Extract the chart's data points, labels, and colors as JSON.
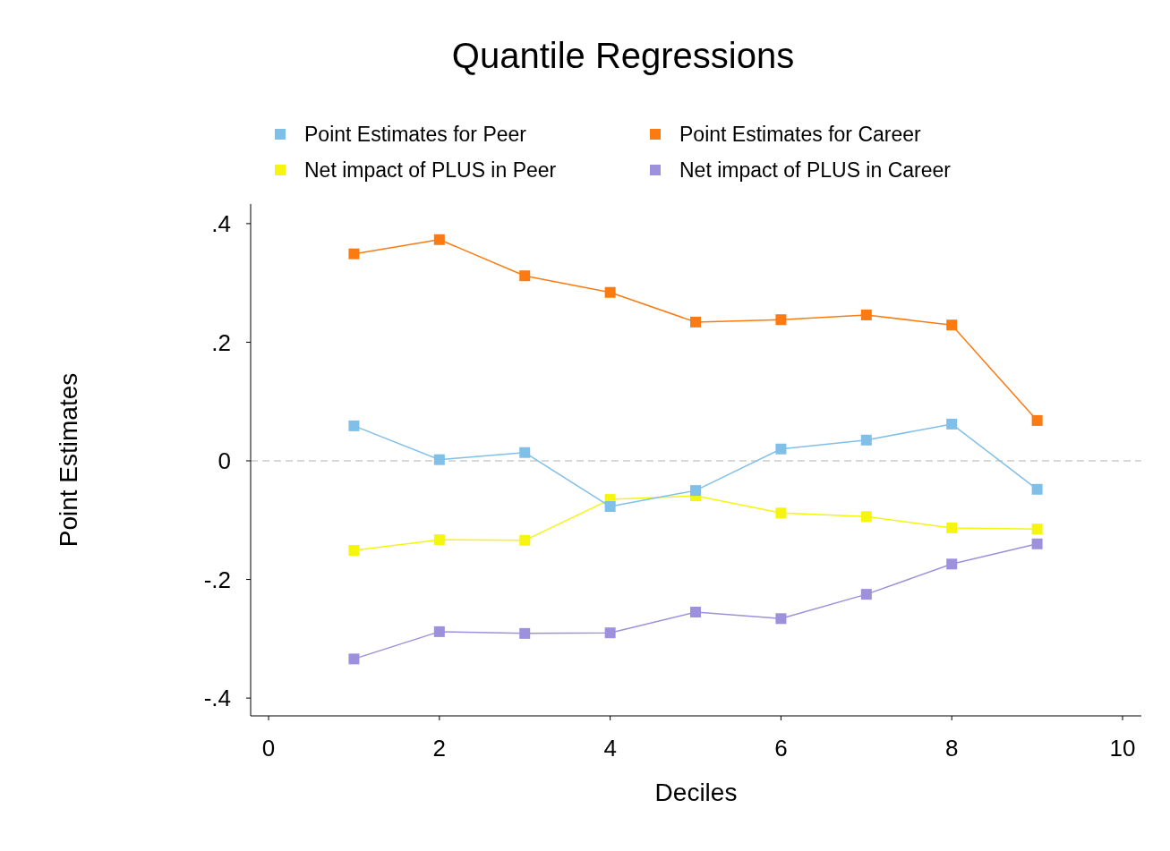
{
  "chart_data": {
    "type": "line",
    "title": "Quantile Regressions",
    "xlabel": "Deciles",
    "ylabel": "Point Estimates",
    "x": [
      1,
      2,
      3,
      4,
      5,
      6,
      7,
      8,
      9
    ],
    "series": [
      {
        "name": "Point Estimates for Peer",
        "color": "#80bfe8",
        "values": [
          0.059,
          0.002,
          0.014,
          -0.077,
          -0.05,
          0.02,
          0.035,
          0.062,
          -0.048
        ]
      },
      {
        "name": "Point Estimates for Career",
        "color": "#fb7b12",
        "values": [
          0.349,
          0.373,
          0.312,
          0.284,
          0.234,
          0.238,
          0.246,
          0.229,
          0.068
        ]
      },
      {
        "name": "Net impact of PLUS in Peer",
        "color": "#f5f510",
        "values": [
          -0.151,
          -0.133,
          -0.134,
          -0.065,
          -0.059,
          -0.088,
          -0.094,
          -0.113,
          -0.115
        ]
      },
      {
        "name": "Net impact of PLUS in Career",
        "color": "#9d90dc",
        "values": [
          -0.334,
          -0.288,
          -0.291,
          -0.29,
          -0.255,
          -0.266,
          -0.225,
          -0.174,
          -0.14
        ]
      }
    ],
    "xlim": [
      -0.21,
      10.22
    ],
    "xticks": [
      0,
      2,
      4,
      6,
      8,
      10
    ],
    "ylim": [
      -0.43,
      0.433
    ],
    "yticks": [
      {
        "value": 0.4,
        "label": ".4"
      },
      {
        "value": 0.2,
        "label": ".2"
      },
      0,
      {
        "value": -0.2,
        "label": "-.2"
      },
      {
        "value": -0.4,
        "label": "-.4"
      }
    ],
    "ref_lines": [
      {
        "axis": "y",
        "value": 0,
        "color": "#cccccc",
        "line_style": "dashed"
      }
    ],
    "legend": "top",
    "marker": "square",
    "line_style": "solid",
    "grid": false
  }
}
